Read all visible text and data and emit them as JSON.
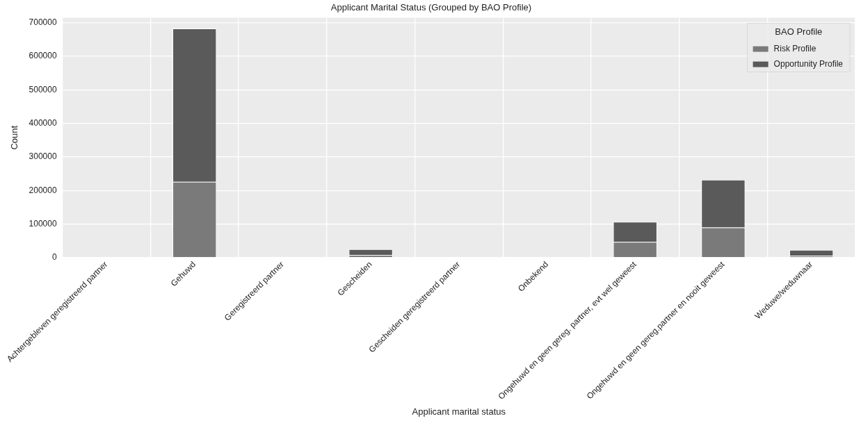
{
  "chart_data": {
    "type": "bar",
    "title": "Applicant Marital Status (Grouped by BAO Profile)",
    "xlabel": "Applicant marital status",
    "ylabel": "Count",
    "legend_title": "BAO Profile",
    "categories": [
      "Achtergebleven geregistreerd partner",
      "Gehuwd",
      "Geregistreerd partner",
      "Gescheiden",
      "Gescheiden geregistreerd partner",
      "Onbekend",
      "Ongehuwd en geen gereg. partner, evt wel geweest",
      "Ongehuwd en geen gereg.partner en nooit geweest",
      "Weduwe/weduwnaar"
    ],
    "series": [
      {
        "name": "Risk Profile",
        "color": "#7a7a7a",
        "values": [
          0,
          226000,
          0,
          8000,
          0,
          0,
          47000,
          90000,
          6000
        ]
      },
      {
        "name": "Opportunity Profile",
        "color": "#5a5a5a",
        "values": [
          0,
          457000,
          0,
          17000,
          0,
          0,
          60000,
          142000,
          17000
        ]
      }
    ],
    "stacked": true,
    "ylim": [
      0,
      715000
    ],
    "yticks": [
      0,
      100000,
      200000,
      300000,
      400000,
      500000,
      600000,
      700000
    ],
    "grid": true,
    "legend": "top right"
  }
}
